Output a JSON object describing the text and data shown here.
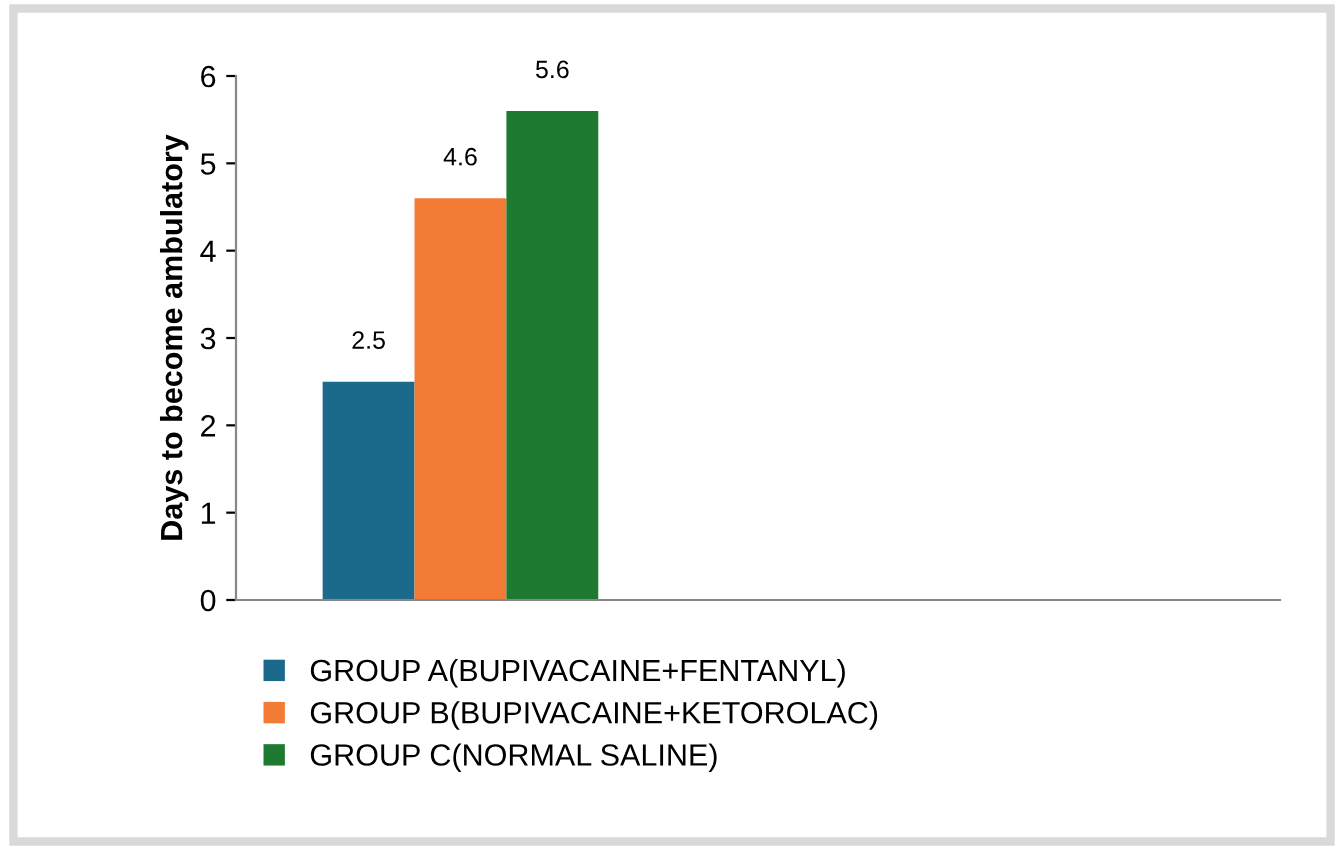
{
  "chart_data": {
    "type": "bar",
    "ylabel": "Days to become ambulatory",
    "categories": [
      null,
      null
    ],
    "series": [
      {
        "name": "GROUP A(BUPIVACAINE+FENTANYL)",
        "color": "#1b6a8c",
        "values": [
          2.5,
          null
        ]
      },
      {
        "name": "GROUP B(BUPIVACAINE+KETOROLAC)",
        "color": "#f27b35",
        "values": [
          4.6,
          null
        ]
      },
      {
        "name": "GROUP C(NORMAL SALINE)",
        "color": "#1e7a30",
        "values": [
          5.6,
          null
        ]
      }
    ],
    "ylim": [
      0,
      6
    ],
    "yticks": [
      0,
      1,
      2,
      3,
      4,
      5,
      6
    ],
    "grid": false,
    "legend": "bottom",
    "data_labels": true
  }
}
